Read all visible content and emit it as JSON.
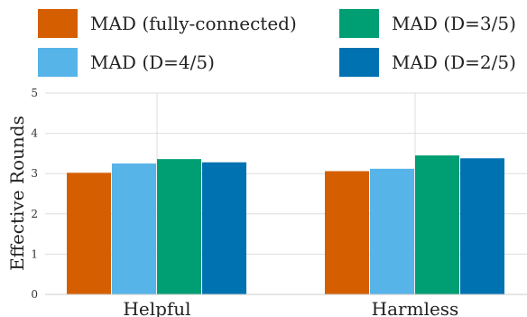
{
  "chart_data": {
    "type": "bar",
    "title": "",
    "xlabel": "",
    "ylabel": "Effective Rounds",
    "ylim": [
      0,
      5
    ],
    "yticks": [
      0,
      1,
      2,
      3,
      4,
      5
    ],
    "grid": true,
    "legend_position": "top",
    "categories": [
      "Helpful",
      "Harmless"
    ],
    "series": [
      {
        "name": "MAD (fully-connected)",
        "color": "#D55E00",
        "values": [
          3.02,
          3.06
        ]
      },
      {
        "name": "MAD (D=4/5)",
        "color": "#56B4E9",
        "values": [
          3.25,
          3.12
        ]
      },
      {
        "name": "MAD (D=3/5)",
        "color": "#009E73",
        "values": [
          3.36,
          3.45
        ]
      },
      {
        "name": "MAD (D=2/5)",
        "color": "#0072B2",
        "values": [
          3.28,
          3.38
        ]
      }
    ]
  }
}
